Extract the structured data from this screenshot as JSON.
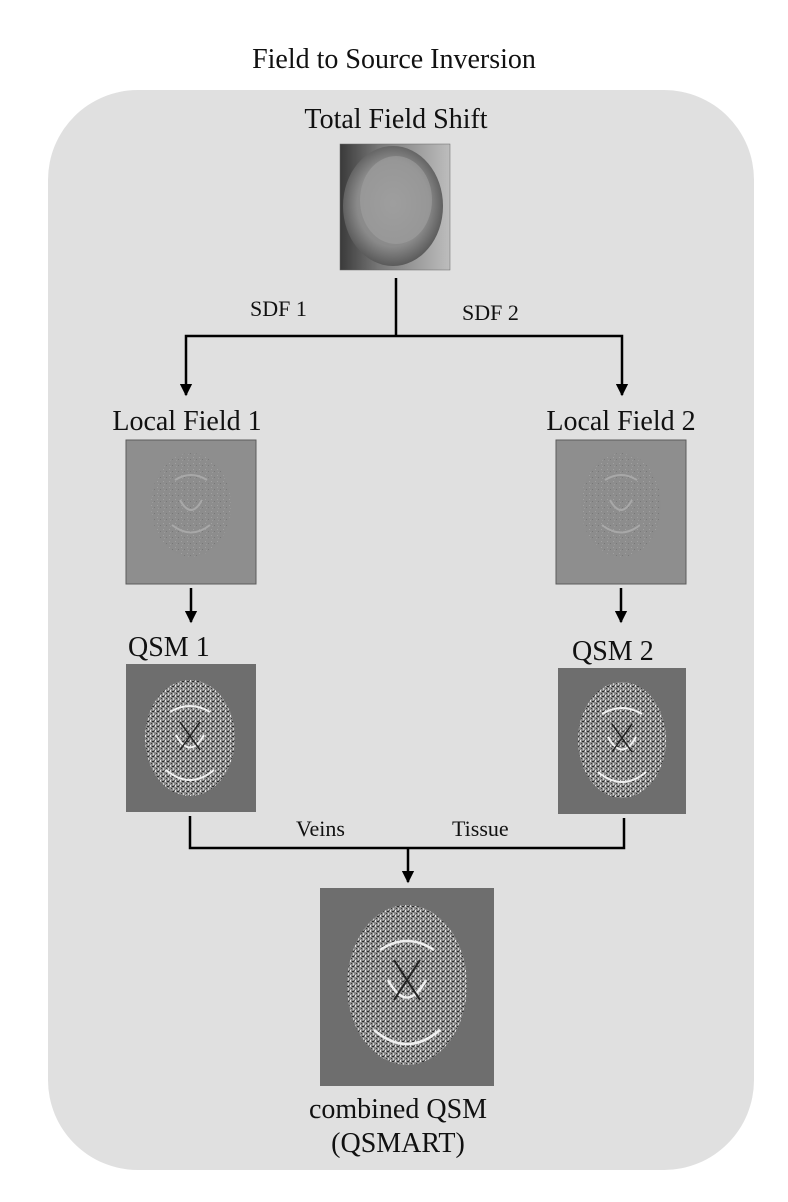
{
  "title": "Field to Source Inversion",
  "nodes": {
    "total_field": {
      "label": "Total Field Shift"
    },
    "local_field_1": {
      "label": "Local Field 1"
    },
    "local_field_2": {
      "label": "Local Field 2"
    },
    "qsm_1": {
      "label": "QSM 1"
    },
    "qsm_2": {
      "label": "QSM 2"
    },
    "combined": {
      "label_line1": "combined QSM",
      "label_line2": "(QSMART)"
    }
  },
  "edges": {
    "sdf1": "SDF 1",
    "sdf2": "SDF 2",
    "veins": "Veins",
    "tissue": "Tissue"
  }
}
